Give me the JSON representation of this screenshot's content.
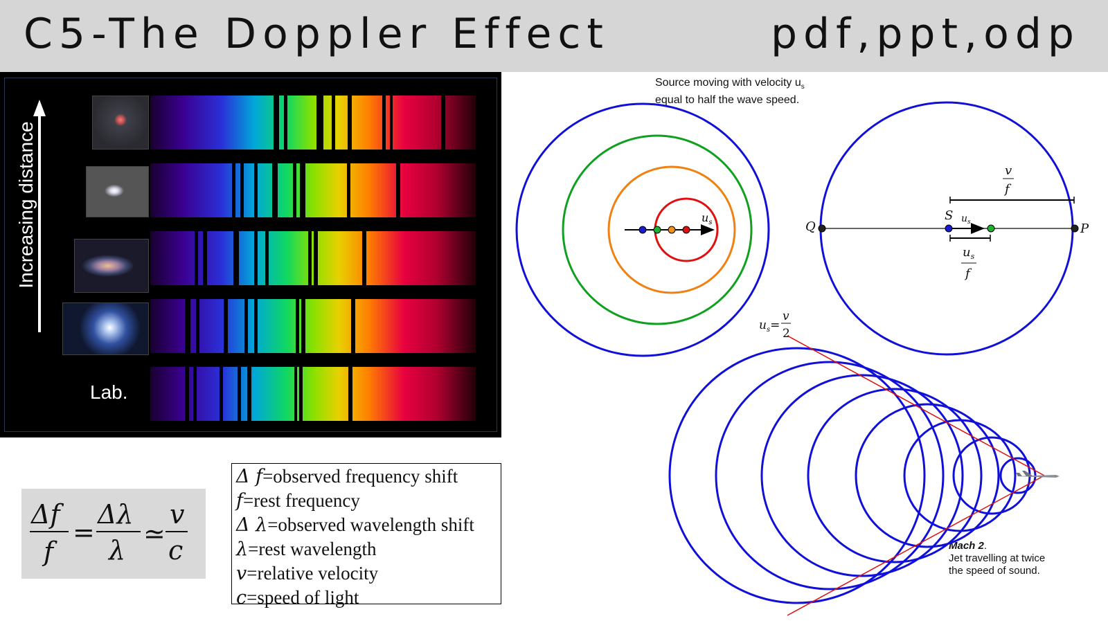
{
  "header": {
    "title": "C5-The Doppler Effect",
    "formats": "pdf,ppt,odp"
  },
  "spectra_panel": {
    "axis_label": "Increasing distance",
    "lab_label": "Lab.",
    "rows": [
      {
        "thumbnail": "distant-galaxy"
      },
      {
        "thumbnail": "elliptical-galaxy"
      },
      {
        "thumbnail": "barred-galaxy"
      },
      {
        "thumbnail": "spiral-galaxy"
      },
      {
        "thumbnail": "none"
      }
    ]
  },
  "formula": {
    "num_left": "Δf",
    "den_left": "f",
    "num_mid": "Δλ",
    "den_mid": "λ",
    "num_right": "v",
    "den_right": "c",
    "eq": "=",
    "approx": "≃"
  },
  "definitions": [
    {
      "sym": "Δ f",
      "text": "=observed frequency shift"
    },
    {
      "sym": "f",
      "text": "=rest frequency"
    },
    {
      "sym": "Δ λ",
      "text": "=observed wavelength shift"
    },
    {
      "sym": "λ",
      "text": "=rest wavelength"
    },
    {
      "sym": "v",
      "text": "=relative velocity"
    },
    {
      "sym": "c",
      "text": "=speed of light"
    }
  ],
  "diagram_moving_source": {
    "caption_line1": "Source moving with velocity u",
    "caption_sub": "s",
    "caption_line2": "equal to half the wave speed.",
    "velocity_label": "u",
    "velocity_sub": "s",
    "below_label_u": "u",
    "below_label_sub": "s",
    "below_eq": "=",
    "below_num": "v",
    "below_den": "2",
    "colors": {
      "outer": "#1010d8",
      "mid": "#10a020",
      "inner": "#f08010",
      "core": "#e01010"
    }
  },
  "diagram_qp": {
    "label_q": "Q",
    "label_p": "P",
    "label_s": "S",
    "label_us": "u",
    "label_us_sub": "s",
    "frac_top_num": "v",
    "frac_top_den": "f",
    "frac_bot_num": "u",
    "frac_bot_sub": "s",
    "frac_bot_den": "f"
  },
  "diagram_mach": {
    "caption_bold": "Mach 2",
    "caption_line1_rest": ".",
    "caption_line2": "Jet travelling at twice",
    "caption_line3": "the speed of sound.",
    "colors": {
      "circles": "#1010d8",
      "cone": "#e01010"
    }
  }
}
